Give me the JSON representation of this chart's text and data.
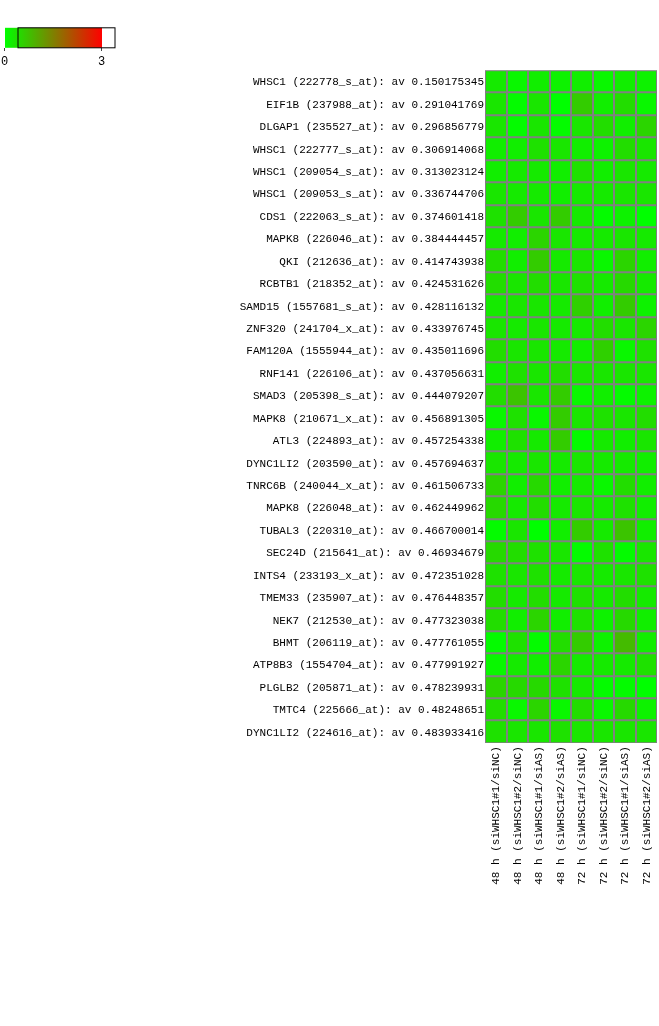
{
  "chart_data": {
    "type": "heatmap",
    "categories": [
      "48 h (siWHSC1#1/siNC)",
      "48 h (siWHSC1#2/siNC)",
      "48 h (siWHSC1#1/siAS)",
      "48 h (siWHSC1#2/siAS)",
      "72 h (siWHSC1#1/siNC)",
      "72 h (siWHSC1#2/siNC)",
      "72 h (siWHSC1#1/siAS)",
      "72 h (siWHSC1#2/siAS)"
    ],
    "y_categories": [
      "WHSC1 (222778_s_at): av 0.150175345",
      "EIF1B (237988_at): av 0.291041769",
      "DLGAP1 (235527_at): av 0.296856779",
      "WHSC1 (222777_s_at): av 0.306914068",
      "WHSC1 (209054_s_at): av 0.313023124",
      "WHSC1 (209053_s_at): av 0.336744706",
      "CDS1 (222063_s_at): av 0.374601418",
      "MAPK8 (226046_at): av 0.384444457",
      "QKI (212636_at): av 0.414743938",
      "RCBTB1 (218352_at): av 0.424531626",
      "SAMD15 (1557681_s_at): av 0.428116132",
      "ZNF320 (241704_x_at): av 0.433976745",
      "FAM120A (1555944_at): av 0.435011696",
      "RNF141 (226106_at): av 0.437056631",
      "SMAD3 (205398_s_at): av 0.444079207",
      "MAPK8 (210671_x_at): av 0.456891305",
      "ATL3 (224893_at): av 0.457254338",
      "DYNC1LI2 (203590_at): av 0.457694637",
      "TNRC6B (240044_x_at): av 0.461506733",
      "MAPK8 (226048_at): av 0.462449962",
      "TUBAL3 (220310_at): av 0.466700014",
      "SEC24D (215641_at): av 0.46934679",
      "INTS4 (233193_x_at): av 0.472351028",
      "TMEM33 (235907_at): av 0.476448357",
      "NEK7 (212530_at): av 0.477323038",
      "BHMT (206119_at): av 0.477761055",
      "ATP8B3 (1554704_at): av 0.477991927",
      "PLGLB2 (205871_at): av 0.478239931",
      "TMTC4 (225666_at): av 0.48248651",
      "DYNC1LI2 (224616_at): av 0.483933416"
    ],
    "cells": [
      [
        0.25,
        0.1,
        0.2,
        0.15,
        0.2,
        0.1,
        0.2,
        0.15
      ],
      [
        0.3,
        0.05,
        0.3,
        0.0,
        0.6,
        0.2,
        0.4,
        0.1
      ],
      [
        0.3,
        0.05,
        0.3,
        0.05,
        0.3,
        0.4,
        0.2,
        0.5
      ],
      [
        0.2,
        0.2,
        0.35,
        0.3,
        0.2,
        0.15,
        0.4,
        0.3
      ],
      [
        0.2,
        0.25,
        0.25,
        0.2,
        0.35,
        0.2,
        0.3,
        0.25
      ],
      [
        0.3,
        0.25,
        0.25,
        0.2,
        0.25,
        0.25,
        0.3,
        0.3
      ],
      [
        0.35,
        0.6,
        0.3,
        0.6,
        0.25,
        0.05,
        0.15,
        0.0
      ],
      [
        0.25,
        0.2,
        0.5,
        0.3,
        0.25,
        0.25,
        0.3,
        0.25
      ],
      [
        0.4,
        0.2,
        0.6,
        0.25,
        0.3,
        0.1,
        0.5,
        0.2
      ],
      [
        0.4,
        0.3,
        0.4,
        0.3,
        0.35,
        0.25,
        0.45,
        0.25
      ],
      [
        0.25,
        0.3,
        0.3,
        0.25,
        0.55,
        0.2,
        0.6,
        0.15
      ],
      [
        0.3,
        0.25,
        0.3,
        0.25,
        0.25,
        0.4,
        0.3,
        0.5
      ],
      [
        0.4,
        0.3,
        0.3,
        0.25,
        0.2,
        0.55,
        0.1,
        0.35
      ],
      [
        0.2,
        0.35,
        0.3,
        0.4,
        0.3,
        0.3,
        0.3,
        0.3
      ],
      [
        0.4,
        0.7,
        0.3,
        0.6,
        0.1,
        0.2,
        0.05,
        0.15
      ],
      [
        0.1,
        0.35,
        0.1,
        0.6,
        0.3,
        0.35,
        0.3,
        0.4
      ],
      [
        0.2,
        0.35,
        0.25,
        0.6,
        0.05,
        0.25,
        0.2,
        0.3
      ],
      [
        0.3,
        0.25,
        0.3,
        0.25,
        0.3,
        0.25,
        0.25,
        0.2
      ],
      [
        0.5,
        0.2,
        0.45,
        0.2,
        0.25,
        0.1,
        0.4,
        0.2
      ],
      [
        0.45,
        0.25,
        0.4,
        0.25,
        0.3,
        0.25,
        0.35,
        0.2
      ],
      [
        0.05,
        0.3,
        0.0,
        0.2,
        0.6,
        0.25,
        0.7,
        0.2
      ],
      [
        0.45,
        0.4,
        0.35,
        0.3,
        0.05,
        0.35,
        0.05,
        0.3
      ],
      [
        0.35,
        0.3,
        0.35,
        0.25,
        0.3,
        0.25,
        0.3,
        0.35
      ],
      [
        0.4,
        0.25,
        0.4,
        0.25,
        0.35,
        0.25,
        0.4,
        0.25
      ],
      [
        0.4,
        0.2,
        0.5,
        0.2,
        0.35,
        0.15,
        0.45,
        0.2
      ],
      [
        0.05,
        0.35,
        0.05,
        0.4,
        0.6,
        0.15,
        0.8,
        0.2
      ],
      [
        0.1,
        0.25,
        0.2,
        0.5,
        0.25,
        0.25,
        0.25,
        0.35
      ],
      [
        0.5,
        0.45,
        0.45,
        0.35,
        0.25,
        0.05,
        0.05,
        0.0
      ],
      [
        0.4,
        0.1,
        0.5,
        0.1,
        0.4,
        0.1,
        0.45,
        0.15
      ],
      [
        0.35,
        0.3,
        0.3,
        0.35,
        0.3,
        0.3,
        0.3,
        0.3
      ]
    ],
    "clim": [
      0,
      3
    ],
    "cticks": [
      0,
      3
    ]
  }
}
